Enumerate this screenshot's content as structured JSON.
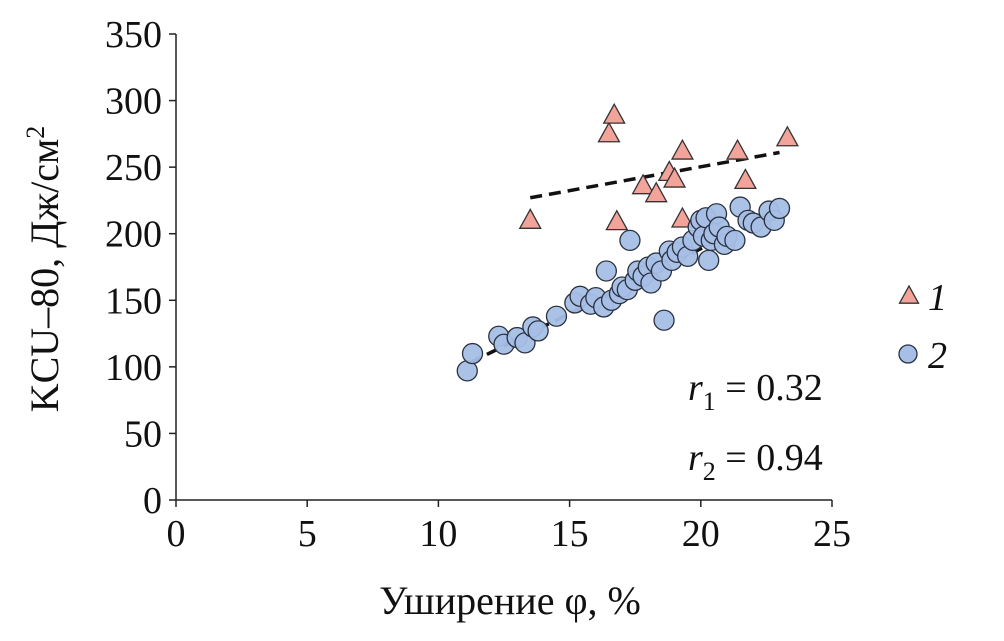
{
  "chart_data": {
    "type": "scatter",
    "xlabel": "Уширение φ, %",
    "ylabel": {
      "main": "KCU–80, Дж/см",
      "sup": "2"
    },
    "xlim": [
      0,
      25
    ],
    "ylim": [
      0,
      350
    ],
    "xticks": [
      "0",
      "5",
      "10",
      "15",
      "20",
      "25"
    ],
    "yticks": [
      "0",
      "50",
      "100",
      "150",
      "200",
      "250",
      "300",
      "350"
    ],
    "grid": false,
    "legend_position": "right",
    "series": [
      {
        "name": "1",
        "marker": "triangle",
        "color": "#f2a39a",
        "points": [
          [
            13.5,
            210
          ],
          [
            16.5,
            275
          ],
          [
            16.7,
            289
          ],
          [
            16.8,
            209
          ],
          [
            17.8,
            236
          ],
          [
            18.3,
            230
          ],
          [
            18.8,
            246
          ],
          [
            19.0,
            241
          ],
          [
            19.3,
            262
          ],
          [
            19.3,
            211
          ],
          [
            21.4,
            262
          ],
          [
            21.7,
            240
          ],
          [
            23.3,
            272
          ]
        ],
        "trend": [
          [
            13.5,
            227
          ],
          [
            23.0,
            261
          ]
        ]
      },
      {
        "name": "2",
        "marker": "circle",
        "color": "#a6bfe6",
        "points": [
          [
            11.1,
            97
          ],
          [
            11.3,
            110
          ],
          [
            12.3,
            123
          ],
          [
            12.5,
            117
          ],
          [
            13.0,
            122
          ],
          [
            13.3,
            118
          ],
          [
            13.6,
            130
          ],
          [
            13.8,
            127
          ],
          [
            14.5,
            138
          ],
          [
            15.2,
            148
          ],
          [
            15.4,
            153
          ],
          [
            15.8,
            147
          ],
          [
            16.0,
            152
          ],
          [
            16.3,
            145
          ],
          [
            16.4,
            172
          ],
          [
            16.6,
            150
          ],
          [
            16.9,
            155
          ],
          [
            17.0,
            160
          ],
          [
            17.2,
            158
          ],
          [
            17.3,
            195
          ],
          [
            17.5,
            165
          ],
          [
            17.6,
            172
          ],
          [
            17.8,
            168
          ],
          [
            18.0,
            175
          ],
          [
            18.1,
            163
          ],
          [
            18.3,
            178
          ],
          [
            18.5,
            172
          ],
          [
            18.6,
            135
          ],
          [
            18.8,
            187
          ],
          [
            18.9,
            180
          ],
          [
            19.1,
            186
          ],
          [
            19.3,
            190
          ],
          [
            19.5,
            183
          ],
          [
            19.7,
            195
          ],
          [
            19.9,
            205
          ],
          [
            20.0,
            210
          ],
          [
            20.1,
            198
          ],
          [
            20.2,
            212
          ],
          [
            20.3,
            180
          ],
          [
            20.4,
            195
          ],
          [
            20.5,
            200
          ],
          [
            20.6,
            215
          ],
          [
            20.7,
            205
          ],
          [
            20.9,
            192
          ],
          [
            21.0,
            198
          ],
          [
            21.3,
            195
          ],
          [
            21.5,
            220
          ],
          [
            21.8,
            210
          ],
          [
            22.0,
            208
          ],
          [
            22.3,
            205
          ],
          [
            22.6,
            217
          ],
          [
            22.8,
            210
          ],
          [
            23.0,
            219
          ]
        ],
        "trend": [
          [
            11.2,
            103
          ],
          [
            23.0,
            218
          ]
        ]
      }
    ],
    "annotations": [
      {
        "var": "r",
        "sub": "1",
        "value": " = 0.32"
      },
      {
        "var": "r",
        "sub": "2",
        "value": " = 0.94"
      }
    ]
  }
}
